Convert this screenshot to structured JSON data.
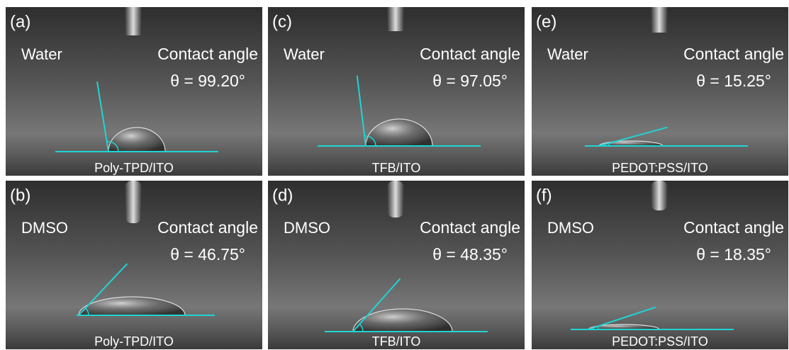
{
  "panels": [
    {
      "label": "(a)",
      "liquid": "Water",
      "caption": "Contact angle",
      "angle": 99.2,
      "angle_label": "θ = 99.20°",
      "substrate": "Poly-TPD/ITO"
    },
    {
      "label": "(b)",
      "liquid": "DMSO",
      "caption": "Contact angle",
      "angle": 46.75,
      "angle_label": "θ = 46.75°",
      "substrate": "Poly-TPD/ITO"
    },
    {
      "label": "(c)",
      "liquid": "Water",
      "caption": "Contact angle",
      "angle": 97.05,
      "angle_label": "θ = 97.05°",
      "substrate": "TFB/ITO"
    },
    {
      "label": "(d)",
      "liquid": "DMSO",
      "caption": "Contact angle",
      "angle": 48.35,
      "angle_label": "θ = 48.35°",
      "substrate": "TFB/ITO"
    },
    {
      "label": "(e)",
      "liquid": "Water",
      "caption": "Contact angle",
      "angle": 15.25,
      "angle_label": "θ = 15.25°",
      "substrate": "PEDOT:PSS/ITO"
    },
    {
      "label": "(f)",
      "liquid": "DMSO",
      "caption": "Contact angle",
      "angle": 18.35,
      "angle_label": "θ = 18.35°",
      "substrate": "PEDOT:PSS/ITO"
    }
  ]
}
